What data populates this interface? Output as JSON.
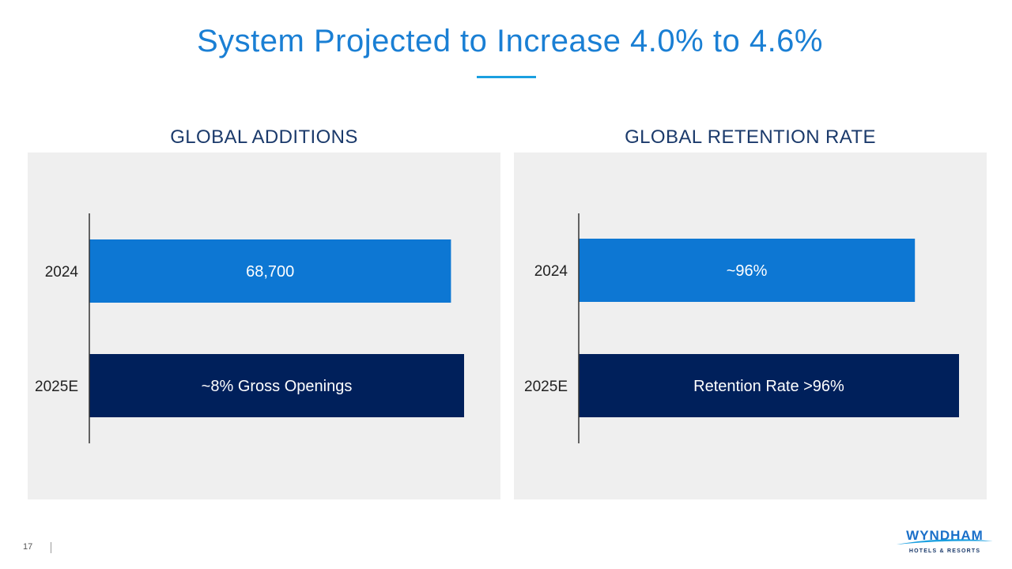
{
  "slide": {
    "title": "System Projected to Increase 4.0% to 4.6%",
    "page_number": "17",
    "logo": {
      "word": "WYNDHAM",
      "sub": "HOTELS & RESORTS"
    }
  },
  "colors": {
    "title": "#1a7fd4",
    "heading": "#1b3a6b",
    "bar_2024": "#0d77d3",
    "bar_2025e": "#00205b",
    "panel_bg": "#efefef",
    "axis": "#333333"
  },
  "chart_data": [
    {
      "type": "bar",
      "orientation": "horizontal",
      "title": "GLOBAL ADDITIONS",
      "categories": [
        "2024",
        "2025E"
      ],
      "values": [
        96.5,
        100
      ],
      "bar_labels": [
        "68,700",
        "~8% Gross Openings"
      ],
      "xlim": [
        0,
        100
      ],
      "grid": false,
      "legend": "none"
    },
    {
      "type": "bar",
      "orientation": "horizontal",
      "title": "GLOBAL RETENTION RATE",
      "categories": [
        "2024",
        "2025E"
      ],
      "values": [
        88.4,
        100
      ],
      "bar_labels": [
        "~96%",
        "Retention Rate >96%"
      ],
      "xlim": [
        0,
        100
      ],
      "grid": false,
      "legend": "none"
    }
  ]
}
